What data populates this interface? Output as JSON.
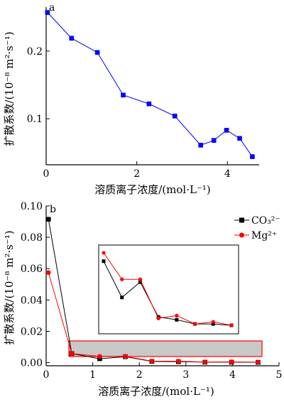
{
  "chart_data": [
    {
      "panel": "a",
      "type": "line",
      "xlabel": "溶质离子浓度/(mol·L⁻¹)",
      "ylabel": "扩散系数/(10⁻⁸ m²·s⁻¹)",
      "xlim": [
        0,
        4.7
      ],
      "ylim": [
        0.032,
        0.265
      ],
      "x_ticks": [
        "0",
        "2",
        "4"
      ],
      "x_tick_values": [
        0,
        2,
        4
      ],
      "y_ticks": [
        "0.1",
        "0.2"
      ],
      "y_tick_values": [
        0.1,
        0.2
      ],
      "series": [
        {
          "color": "#0000ff",
          "marker": "square",
          "points": [
            [
              0.03,
              0.257
            ],
            [
              0.56,
              0.219
            ],
            [
              1.13,
              0.198
            ],
            [
              1.7,
              0.135
            ],
            [
              2.27,
              0.122
            ],
            [
              2.84,
              0.104
            ],
            [
              3.41,
              0.061
            ],
            [
              3.7,
              0.068
            ],
            [
              3.98,
              0.083
            ],
            [
              4.27,
              0.071
            ],
            [
              4.55,
              0.044
            ]
          ]
        }
      ]
    },
    {
      "panel": "b",
      "type": "line",
      "xlabel": "溶质离子浓度/(mol·L⁻¹)",
      "ylabel": "扩散系数/(10⁻⁸ m²·s⁻¹)",
      "xlim": [
        0,
        5
      ],
      "ylim": [
        -0.002,
        0.1
      ],
      "x_ticks": [
        "0",
        "1",
        "2",
        "3",
        "4",
        "5"
      ],
      "x_tick_values": [
        0,
        1,
        2,
        3,
        4,
        5
      ],
      "y_ticks": [
        "0.00",
        "0.02",
        "0.04",
        "0.06",
        "0.08",
        "0.10"
      ],
      "y_tick_values": [
        0,
        0.02,
        0.04,
        0.06,
        0.08,
        0.1
      ],
      "series": [
        {
          "name": "CO₃²⁻",
          "color": "#000000",
          "marker": "square",
          "points": [
            [
              0.05,
              0.0915
            ],
            [
              0.55,
              0.0058
            ],
            [
              1.15,
              0.0025
            ],
            [
              1.7,
              0.0038
            ],
            [
              2.27,
              0.0008
            ],
            [
              2.84,
              0.0006
            ],
            [
              3.41,
              0.0003
            ],
            [
              3.98,
              0.0003
            ],
            [
              4.55,
              0.0002
            ]
          ]
        },
        {
          "name": "Mg²⁺",
          "color": "#ff0000",
          "marker": "circle",
          "points": [
            [
              0.05,
              0.0575
            ],
            [
              0.55,
              0.0058
            ],
            [
              1.15,
              0.004
            ],
            [
              1.7,
              0.004
            ],
            [
              2.27,
              0.001
            ],
            [
              2.84,
              0.0009
            ],
            [
              3.41,
              0.0004
            ],
            [
              3.98,
              0.0005
            ],
            [
              4.55,
              0.0003
            ]
          ]
        }
      ],
      "inset": {
        "black_values": [
          0.0064,
          0.0038,
          0.0049,
          0.0024,
          0.0022,
          0.0019,
          0.0019,
          0.0018
        ],
        "red_values": [
          0.007,
          0.0051,
          0.0051,
          0.0023,
          0.0025,
          0.0019,
          0.00205,
          0.0018
        ]
      }
    }
  ]
}
